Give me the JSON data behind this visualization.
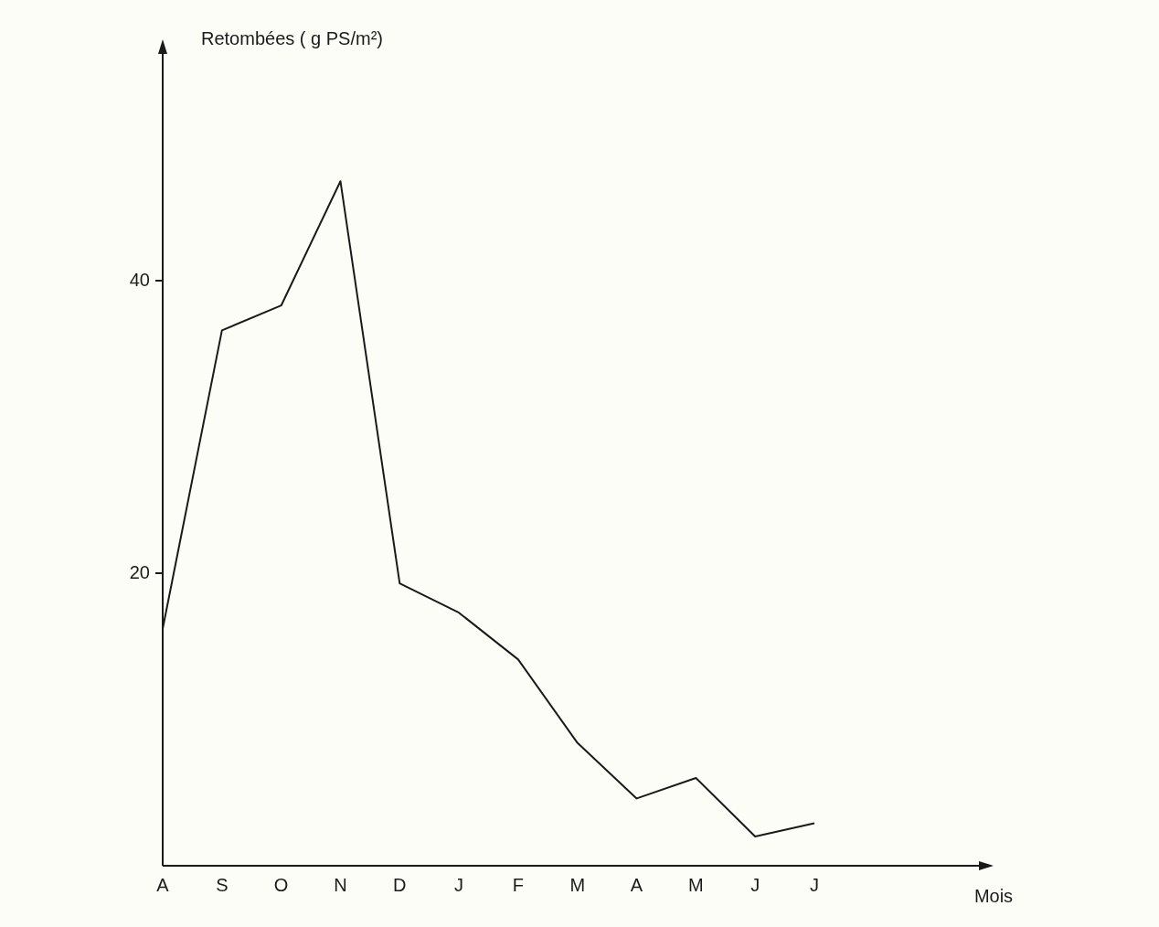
{
  "chart_data": {
    "type": "line",
    "ylabel": "Retombées ( g PS/m²)",
    "annotations": [
      "Mois"
    ],
    "categories": [
      "A",
      "S",
      "O",
      "N",
      "D",
      "J",
      "F",
      "M",
      "A",
      "M",
      "J",
      "J"
    ],
    "series": [
      {
        "color": "#1a1a1a",
        "values": [
          16.2,
          36.6,
          38.3,
          46.8,
          19.3,
          17.3,
          14.1,
          8.4,
          4.6,
          6.0,
          2.0,
          2.9
        ]
      }
    ],
    "ylim": [
      0,
      56
    ],
    "yticks": [
      20,
      40
    ],
    "grid": false,
    "legend": false,
    "marker": "none",
    "line_style": "solid"
  }
}
